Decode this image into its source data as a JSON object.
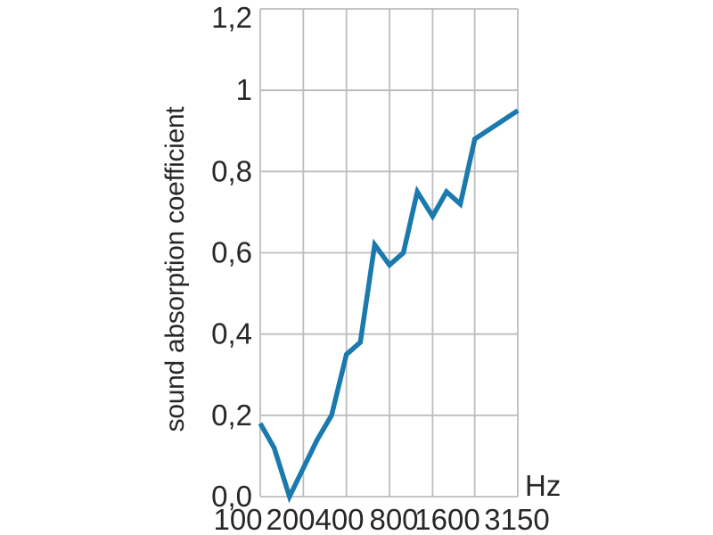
{
  "chart_data": {
    "type": "line",
    "title": "",
    "ylabel": "sound absorption coefficient",
    "xlabel": "Hz",
    "x_scale": "logarithmic (third-octave bands), octave gridlines",
    "xlim_hz": [
      100,
      6300
    ],
    "ylim": [
      0,
      1.2
    ],
    "grid": "on: vertical lines at octave ticks plus right frame edge; horizontal lines every 0.2",
    "legend": "none",
    "x_ticks": [
      {
        "label": "100",
        "hz": 100
      },
      {
        "label": "200",
        "hz": 200
      },
      {
        "label": "400",
        "hz": 400
      },
      {
        "label": "800",
        "hz": 800
      },
      {
        "label": "1600",
        "hz": 1600
      },
      {
        "label": "3150",
        "hz": 3150
      }
    ],
    "y_ticks": [
      {
        "label": "0,0",
        "value": 0.0
      },
      {
        "label": "0,2",
        "value": 0.2
      },
      {
        "label": "0,4",
        "value": 0.4
      },
      {
        "label": "0,6",
        "value": 0.6
      },
      {
        "label": "0,8",
        "value": 0.8
      },
      {
        "label": "1",
        "value": 1.0
      },
      {
        "label": "1,2",
        "value": 1.2
      }
    ],
    "series": [
      {
        "name": "sound absorption coefficient",
        "frequencies_hz": [
          100,
          125,
          160,
          200,
          250,
          315,
          400,
          500,
          630,
          800,
          1000,
          1250,
          1600,
          2000,
          2500,
          3150,
          6300
        ],
        "values": [
          0.18,
          0.12,
          0.0,
          0.07,
          0.14,
          0.2,
          0.35,
          0.38,
          0.62,
          0.57,
          0.6,
          0.75,
          0.69,
          0.75,
          0.72,
          0.88,
          0.95
        ],
        "note": "curve continues past the 3150 Hz gridline to the unlabeled right plot edge, ending at ~0.95"
      }
    ]
  },
  "colors": {
    "line": "#1a7aae",
    "grid": "#bdbdbd",
    "text": "#272727",
    "background": "#ffffff"
  }
}
